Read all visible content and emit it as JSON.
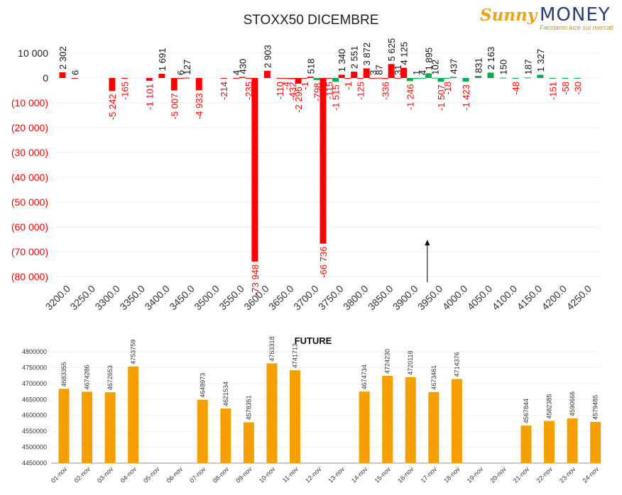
{
  "logo": {
    "brand_script": "Sunny",
    "brand_main": "MONEY",
    "tagline": "Facciamo luce sui mercati"
  },
  "colors": {
    "negative": "#ff0000",
    "positive_red": "#ff0000",
    "positive_green": "#00b050",
    "future_bar": "#f5a000",
    "tick_negative": "#ff0000"
  },
  "chart_data": [
    {
      "type": "bar",
      "title": "STOXX50 DICEMBRE",
      "ylim": [
        -80000,
        10000
      ],
      "yticks": [
        10000,
        0,
        -10000,
        -20000,
        -30000,
        -40000,
        -50000,
        -60000,
        -70000,
        -80000
      ],
      "ytick_labels": [
        "10 000",
        "0",
        "(10 000)",
        "(20 000)",
        "(30 000)",
        "(40 000)",
        "(50 000)",
        "(60 000)",
        "(70 000)",
        "(80 000)"
      ],
      "xtick_labels": [
        "3200.0",
        "3250.0",
        "3300.0",
        "3350.0",
        "3400.0",
        "3450.0",
        "3500.0",
        "3550.0",
        "3600.0",
        "3650.0",
        "3700.0",
        "3750.0",
        "3800.0",
        "3850.0",
        "3900.0",
        "3950.0",
        "4000.0",
        "4050.0",
        "4100.0",
        "4150.0",
        "4200.0",
        "4250.0"
      ],
      "points": [
        {
          "x": 3200,
          "value": 2302,
          "label": "2 302",
          "color": "red"
        },
        {
          "x": 3225,
          "value": 6,
          "label": "6",
          "color": "red"
        },
        {
          "x": 3300,
          "value": -5242,
          "label": "-5 242",
          "color": "red"
        },
        {
          "x": 3325,
          "value": -165,
          "label": "-165",
          "color": "red"
        },
        {
          "x": 3375,
          "value": -1101,
          "label": "-1 101",
          "color": "red"
        },
        {
          "x": 3400,
          "value": 1691,
          "label": "1 691",
          "color": "red"
        },
        {
          "x": 3425,
          "value": -5007,
          "label": "-5 007",
          "color": "red"
        },
        {
          "x": 3437.5,
          "value": 6,
          "label": "6",
          "color": "red"
        },
        {
          "x": 3450,
          "value": 127,
          "label": "127",
          "color": "red"
        },
        {
          "x": 3475,
          "value": -4933,
          "label": "-4 933",
          "color": "red"
        },
        {
          "x": 3525,
          "value": -214,
          "label": "-214",
          "color": "red"
        },
        {
          "x": 3550,
          "value": 4,
          "label": "4",
          "color": "red"
        },
        {
          "x": 3562.5,
          "value": 430,
          "label": "430",
          "color": "red"
        },
        {
          "x": 3575,
          "value": -235,
          "label": "-235",
          "color": "red"
        },
        {
          "x": 3587.5,
          "value": -73948,
          "label": "-73 948",
          "color": "red"
        },
        {
          "x": 3612.5,
          "value": 2903,
          "label": "2 903",
          "color": "red"
        },
        {
          "x": 3637.5,
          "value": -110,
          "label": "-110",
          "color": "red"
        },
        {
          "x": 3650,
          "value": -4,
          "label": "-4",
          "color": "red"
        },
        {
          "x": 3662.5,
          "value": -432,
          "label": "-432",
          "color": "red"
        },
        {
          "x": 3675,
          "value": -2296,
          "label": "-2 296",
          "color": "red"
        },
        {
          "x": 3687.5,
          "value": -1,
          "label": "-1",
          "color": "red"
        },
        {
          "x": 3700,
          "value": 518,
          "label": "518",
          "color": "red"
        },
        {
          "x": 3712.5,
          "value": -798,
          "label": "-798",
          "color": "green"
        },
        {
          "x": 3725,
          "value": -66736,
          "label": "-66 736",
          "color": "red"
        },
        {
          "x": 3737.5,
          "value": -115,
          "label": "-115",
          "color": "red"
        },
        {
          "x": 3750,
          "value": -1515,
          "label": "-1 515",
          "color": "green"
        },
        {
          "x": 3762.5,
          "value": 1340,
          "label": "1 340",
          "color": "red"
        },
        {
          "x": 3775,
          "value": -1,
          "label": "-1",
          "color": "red"
        },
        {
          "x": 3787.5,
          "value": 2551,
          "label": "2 551",
          "color": "red"
        },
        {
          "x": 3800,
          "value": -125,
          "label": "-125",
          "color": "red"
        },
        {
          "x": 3812.5,
          "value": 3872,
          "label": "3 872",
          "color": "red"
        },
        {
          "x": 3825,
          "value": 3,
          "label": "3",
          "color": "red"
        },
        {
          "x": 3837.5,
          "value": 87,
          "label": "87",
          "color": "red"
        },
        {
          "x": 3850,
          "value": -336,
          "label": "-336",
          "color": "red"
        },
        {
          "x": 3862.5,
          "value": 5625,
          "label": "5 625",
          "color": "red"
        },
        {
          "x": 3875,
          "value": 31,
          "label": "31",
          "color": "red"
        },
        {
          "x": 3887.5,
          "value": 4125,
          "label": "4 125",
          "color": "red"
        },
        {
          "x": 3900,
          "value": -1246,
          "label": "-1 246",
          "color": "green"
        },
        {
          "x": 3912.5,
          "value": 1,
          "label": "1",
          "color": "green"
        },
        {
          "x": 3925,
          "value": 4,
          "label": "4",
          "color": "green"
        },
        {
          "x": 3937.5,
          "value": 1895,
          "label": "1 895",
          "color": "green"
        },
        {
          "x": 3950,
          "value": 102,
          "label": "102",
          "color": "green"
        },
        {
          "x": 3962.5,
          "value": -1507,
          "label": "-1 507",
          "color": "green"
        },
        {
          "x": 3975,
          "value": -18,
          "label": "-18",
          "color": "green"
        },
        {
          "x": 3987.5,
          "value": 437,
          "label": "437",
          "color": "green"
        },
        {
          "x": 4012.5,
          "value": -1423,
          "label": "-1 423",
          "color": "green"
        },
        {
          "x": 4037.5,
          "value": 831,
          "label": "831",
          "color": "green"
        },
        {
          "x": 4062.5,
          "value": 2163,
          "label": "2 163",
          "color": "green"
        },
        {
          "x": 4087.5,
          "value": 150,
          "label": "150",
          "color": "green"
        },
        {
          "x": 4112.5,
          "value": -48,
          "label": "-48",
          "color": "green"
        },
        {
          "x": 4137.5,
          "value": 187,
          "label": "187",
          "color": "green"
        },
        {
          "x": 4162.5,
          "value": 1327,
          "label": "1 327",
          "color": "green"
        },
        {
          "x": 4187.5,
          "value": -151,
          "label": "-151",
          "color": "green"
        },
        {
          "x": 4212.5,
          "value": -58,
          "label": "-58",
          "color": "green"
        },
        {
          "x": 4237.5,
          "value": -30,
          "label": "-30",
          "color": "green"
        }
      ],
      "marker": {
        "type": "arrow-up",
        "x": 3935
      }
    },
    {
      "type": "bar",
      "title": "FUTURE",
      "ylim": [
        4450000,
        4800000
      ],
      "yticks": [
        4450000,
        4500000,
        4550000,
        4600000,
        4650000,
        4700000,
        4750000,
        4800000
      ],
      "ytick_labels": [
        "4450000",
        "4500000",
        "4550000",
        "4600000",
        "4650000",
        "4700000",
        "4750000",
        "4800000"
      ],
      "categories": [
        "01-nov",
        "02-nov",
        "03-nov",
        "04-nov",
        "05-nov",
        "06-nov",
        "07-nov",
        "08-nov",
        "09-nov",
        "10-nov",
        "11-nov",
        "12-nov",
        "13-nov",
        "14-nov",
        "15-nov",
        "16-nov",
        "17-nov",
        "18-nov",
        "19-nov",
        "20-nov",
        "21-nov",
        "22-nov",
        "23-nov",
        "24-nov"
      ],
      "values": [
        4683355,
        4674286,
        4672653,
        4753759,
        null,
        null,
        4648973,
        4621534,
        4578351,
        4763318,
        4741713,
        null,
        null,
        4674734,
        4724230,
        4720118,
        4673461,
        4714376,
        null,
        null,
        4567844,
        4582385,
        4590666,
        4579485
      ],
      "labels": [
        "4683355",
        "4674286",
        "4672653",
        "4753759",
        "",
        "",
        "4648973",
        "4621534",
        "4578351",
        "4763318",
        "4741713",
        "",
        "",
        "4674734",
        "4724230",
        "4720118",
        "4673461",
        "4714376",
        "",
        "",
        "4567844",
        "4582385",
        "4590666",
        "4579485"
      ]
    }
  ]
}
